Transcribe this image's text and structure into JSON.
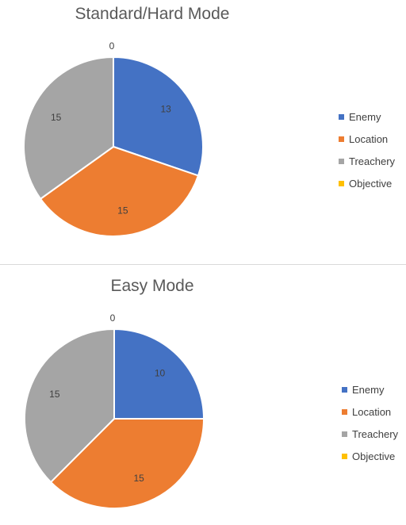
{
  "chart_data": [
    {
      "type": "pie",
      "title": "Standard/Hard Mode",
      "categories": [
        "Enemy",
        "Location",
        "Treachery",
        "Objective"
      ],
      "values": [
        13,
        15,
        15,
        0
      ],
      "colors": [
        "#4472c4",
        "#ed7d31",
        "#a5a5a5",
        "#ffc000"
      ],
      "data_labels": true,
      "legend_position": "right"
    },
    {
      "type": "pie",
      "title": "Easy Mode",
      "categories": [
        "Enemy",
        "Location",
        "Treachery",
        "Objective"
      ],
      "values": [
        10,
        15,
        15,
        0
      ],
      "colors": [
        "#4472c4",
        "#ed7d31",
        "#a5a5a5",
        "#ffc000"
      ],
      "data_labels": true,
      "legend_position": "right"
    }
  ]
}
